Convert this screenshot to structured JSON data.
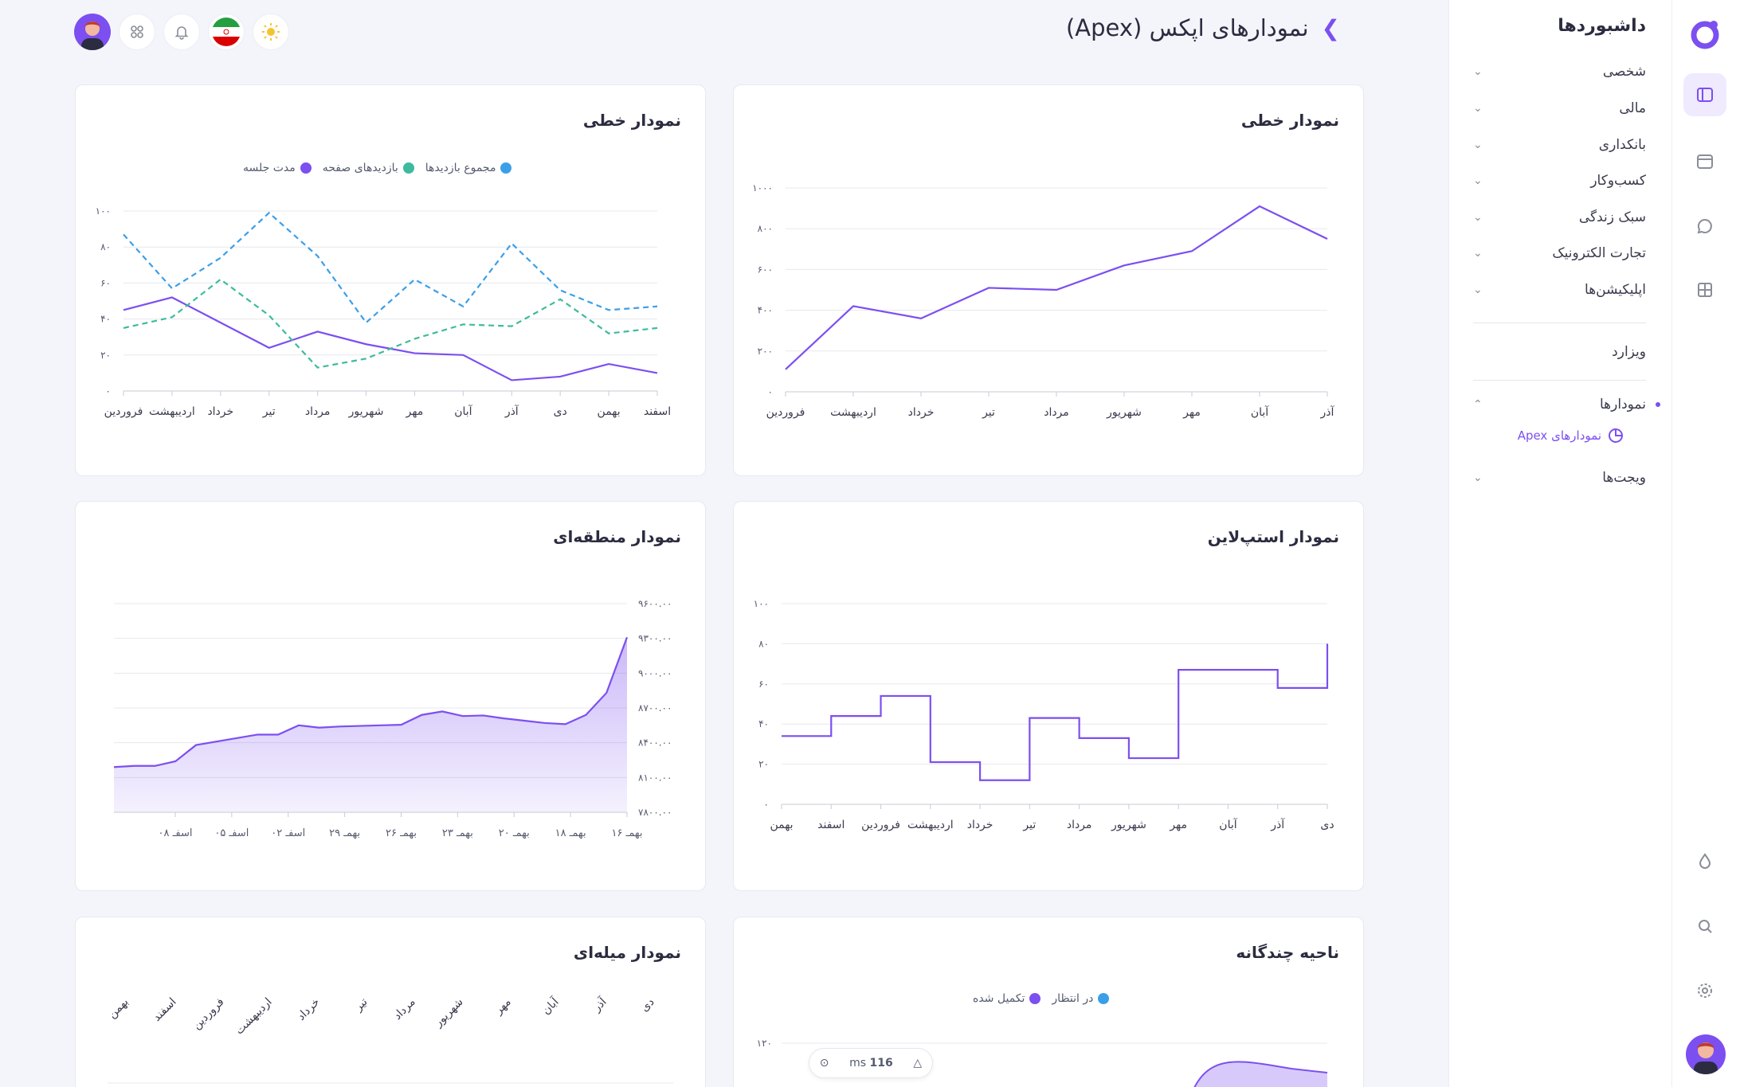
{
  "header": {
    "title": "نمودارهای اپکس (Apex)"
  },
  "sidebar": {
    "title": "داشبوردها",
    "items": [
      {
        "label": "شخصی"
      },
      {
        "label": "مالی"
      },
      {
        "label": "بانکداری"
      },
      {
        "label": "کسب‌وکار"
      },
      {
        "label": "سبک زندگی"
      },
      {
        "label": "تجارت الکترونیک"
      },
      {
        "label": "اپلیکیشن‌ها"
      }
    ],
    "wizard": "ویزارد",
    "charts": "نمودارها",
    "charts_sub": "نمودارهای Apex",
    "widgets": "ویجت‌ها"
  },
  "perf": {
    "value": "116",
    "unit": "ms"
  },
  "colors": {
    "primary": "#7c4ff0",
    "teal": "#3dbb9c",
    "blue": "#3b9fe8"
  },
  "cards": {
    "line1": {
      "title": "نمودار خطی"
    },
    "line2": {
      "title": "نمودار خطی"
    },
    "stepline": {
      "title": "نمودار استپ‌لاین"
    },
    "area": {
      "title": "نمودار منطقه‌ای"
    },
    "multiarea": {
      "title": "ناحیه چندگانه"
    },
    "bar": {
      "title": "نمودار میله‌ای"
    }
  },
  "chart_data": [
    {
      "id": "line1",
      "type": "line",
      "categories": [
        "فروردین",
        "اردیبهشت",
        "خرداد",
        "تیر",
        "مرداد",
        "شهریور",
        "مهر",
        "آبان",
        "آذر"
      ],
      "series": [
        {
          "values": [
            110,
            420,
            360,
            510,
            500,
            620,
            690,
            910,
            750
          ]
        }
      ],
      "yticks": [
        "۰",
        "۲۰۰",
        "۴۰۰",
        "۶۰۰",
        "۸۰۰",
        "۱۰۰۰"
      ],
      "ylim": [
        0,
        1000
      ],
      "grid": true
    },
    {
      "id": "line2",
      "type": "line",
      "categories": [
        "فروردین",
        "اردیبهشت",
        "خرداد",
        "تیر",
        "مرداد",
        "شهریور",
        "مهر",
        "آبان",
        "آذر",
        "دی",
        "بهمن",
        "اسفند"
      ],
      "series": [
        {
          "name": "مدت جلسه",
          "color": "#7c4ff0",
          "dashed": false,
          "values": [
            45,
            52,
            38,
            24,
            33,
            26,
            21,
            20,
            6,
            8,
            15,
            10
          ]
        },
        {
          "name": "بازدیدهای صفحه",
          "color": "#3dbb9c",
          "dashed": true,
          "values": [
            35,
            41,
            62,
            42,
            13,
            18,
            29,
            37,
            36,
            51,
            32,
            35
          ]
        },
        {
          "name": "مجموع بازدیدها",
          "color": "#3b9fe8",
          "dashed": true,
          "values": [
            87,
            57,
            74,
            99,
            75,
            38,
            62,
            47,
            82,
            56,
            45,
            47
          ]
        }
      ],
      "yticks": [
        "۰",
        "۲۰",
        "۴۰",
        "۶۰",
        "۸۰",
        "۱۰۰"
      ],
      "ylim": [
        0,
        100
      ],
      "grid": true,
      "legend": "top"
    },
    {
      "id": "stepline",
      "type": "line",
      "categories": [
        "بهمن",
        "اسفند",
        "فروردین",
        "اردیبهشت",
        "خرداد",
        "تیر",
        "مرداد",
        "شهریور",
        "مهر",
        "آبان",
        "آذر",
        "دی"
      ],
      "series": [
        {
          "values": [
            34,
            44,
            54,
            21,
            12,
            43,
            33,
            23,
            67,
            67,
            58,
            80
          ]
        }
      ],
      "yticks": [
        "۰",
        "۲۰",
        "۴۰",
        "۶۰",
        "۸۰",
        "۱۰۰"
      ],
      "ylim": [
        0,
        100
      ],
      "grid": true
    },
    {
      "id": "area",
      "type": "area",
      "xticks": [
        "بهمـ ۱۶",
        "بهمـ ۱۸",
        "بهمـ ۲۰",
        "بهمـ ۲۳",
        "بهمـ ۲۶",
        "بهمـ ۲۹",
        "اسفـ ۰۲",
        "اسفـ ۰۵",
        "اسفـ ۰۸"
      ],
      "series": [
        {
          "values": [
            8190,
            8200,
            8200,
            8240,
            8380,
            8410,
            8440,
            8470,
            8470,
            8550,
            8530,
            8540,
            8545,
            8550,
            8555,
            8640,
            8670,
            8630,
            8635,
            8610,
            8590,
            8570,
            8560,
            8640,
            8830,
            9310
          ]
        }
      ],
      "yticks": [
        "۷۸۰۰.۰۰",
        "۸۱۰۰.۰۰",
        "۸۴۰۰.۰۰",
        "۸۷۰۰.۰۰",
        "۹۰۰۰.۰۰",
        "۹۳۰۰.۰۰",
        "۹۶۰۰.۰۰"
      ],
      "ylim": [
        7800,
        9600
      ],
      "grid": true
    },
    {
      "id": "multiarea",
      "type": "area",
      "series": [
        {
          "name": "در انتظار",
          "color": "#3b9fe8"
        },
        {
          "name": "تکمیل شده",
          "color": "#7c4ff0"
        }
      ],
      "yticks": [
        "۱۲۰"
      ],
      "legend": "top"
    },
    {
      "id": "bar",
      "type": "bar",
      "categories": [
        "بهمن",
        "اسفند",
        "فروردین",
        "اردیبهشت",
        "خرداد",
        "تیر",
        "مرداد",
        "شهریور",
        "مهر",
        "آبان",
        "آذر",
        "دی"
      ]
    }
  ]
}
